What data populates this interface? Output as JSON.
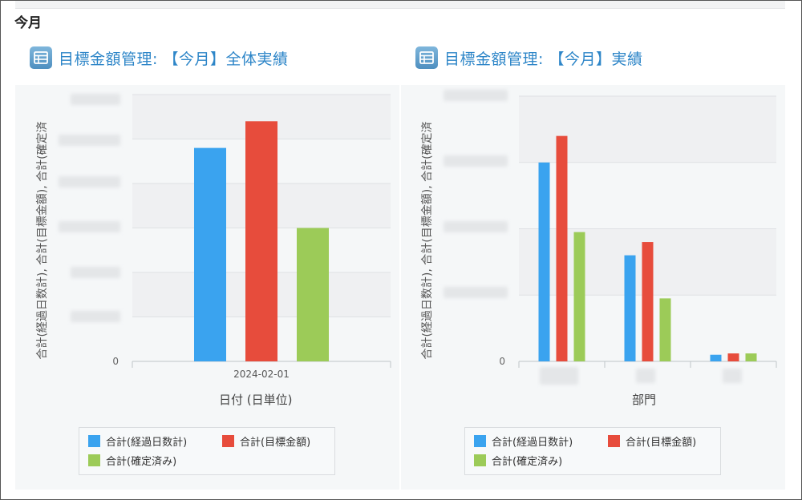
{
  "section_title": "今月",
  "colors": {
    "blue": "#3aa3ef",
    "red": "#e74c3c",
    "green": "#9ccb58",
    "title": "#2e86c8"
  },
  "chart_data": [
    {
      "type": "bar",
      "title": "目標金額管理: 【今月】全体実績",
      "xlabel": "日付 (日単位)",
      "ylabel": "合計(経過日数計), 合計(目標金額), 合計(確定済",
      "categories": [
        "2024-02-01"
      ],
      "y_tick_labels": [
        "0"
      ],
      "ylim": [
        0,
        6
      ],
      "grid": true,
      "legend_position": "bottom",
      "series": [
        {
          "name": "合計(経過日数計)",
          "color": "#3aa3ef",
          "values": [
            4.8
          ]
        },
        {
          "name": "合計(目標金額)",
          "color": "#e74c3c",
          "values": [
            5.4
          ]
        },
        {
          "name": "合計(確定済み)",
          "color": "#9ccb58",
          "values": [
            3.0
          ]
        }
      ]
    },
    {
      "type": "bar",
      "title": "目標金額管理: 【今月】実績",
      "xlabel": "部門",
      "ylabel": "合計(経過日数計), 合計(目標金額), 合計(確定済",
      "categories": [
        "",
        "",
        ""
      ],
      "y_tick_labels": [
        "0"
      ],
      "ylim": [
        0,
        4
      ],
      "grid": true,
      "legend_position": "bottom",
      "series": [
        {
          "name": "合計(経過日数計)",
          "color": "#3aa3ef",
          "values": [
            3.0,
            1.6,
            0.1
          ]
        },
        {
          "name": "合計(目標金額)",
          "color": "#e74c3c",
          "values": [
            3.4,
            1.8,
            0.12
          ]
        },
        {
          "name": "合計(確定済み)",
          "color": "#9ccb58",
          "values": [
            1.95,
            0.95,
            0.12
          ]
        }
      ]
    }
  ]
}
